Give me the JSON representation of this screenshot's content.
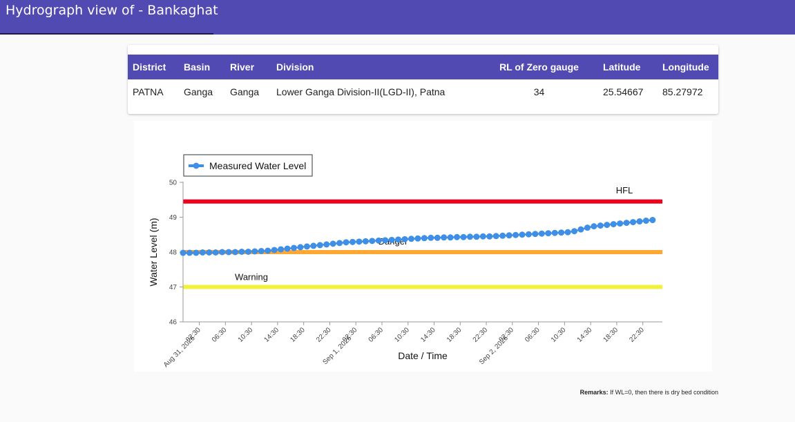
{
  "header": {
    "title": "Hydrograph view of - Bankaghat"
  },
  "station_table": {
    "headers": {
      "district": "District",
      "basin": "Basin",
      "river": "River",
      "division": "Division",
      "rl_zero": "RL of Zero gauge",
      "latitude": "Latitude",
      "longitude": "Longitude"
    },
    "row": {
      "district": "PATNA",
      "basin": "Ganga",
      "river": "Ganga",
      "division": "Lower Ganga Division-II(LGD-II), Patna",
      "rl_zero": "34",
      "latitude": "25.54667",
      "longitude": "85.27972"
    }
  },
  "colors": {
    "accent": "#524ab3",
    "series": "#3f8fe6",
    "hfl": "#f0001c",
    "danger": "#ffa733",
    "warning": "#f2f23c"
  },
  "chart_data": {
    "type": "line",
    "xlabel": "Date / Time",
    "ylabel": "Water Level (m)",
    "ylim": [
      46,
      50
    ],
    "yticks": [
      46,
      47,
      48,
      49,
      50
    ],
    "xlim": [
      "2026-08-31 00:00",
      "2026-09-03 01:30"
    ],
    "x_ticks": [
      {
        "t": "2026-08-31 02:30",
        "label": "02:30"
      },
      {
        "t": "2026-08-31 06:30",
        "label": "06:30"
      },
      {
        "t": "2026-08-31 10:30",
        "label": "10:30"
      },
      {
        "t": "2026-08-31 14:30",
        "label": "14:30"
      },
      {
        "t": "2026-08-31 18:30",
        "label": "18:30"
      },
      {
        "t": "2026-08-31 22:30",
        "label": "22:30"
      },
      {
        "t": "2026-09-01 02:30",
        "label": "02:30"
      },
      {
        "t": "2026-09-01 06:30",
        "label": "06:30"
      },
      {
        "t": "2026-09-01 10:30",
        "label": "10:30"
      },
      {
        "t": "2026-09-01 14:30",
        "label": "14:30"
      },
      {
        "t": "2026-09-01 18:30",
        "label": "18:30"
      },
      {
        "t": "2026-09-01 22:30",
        "label": "22:30"
      },
      {
        "t": "2026-09-02 02:30",
        "label": "02:30"
      },
      {
        "t": "2026-09-02 06:30",
        "label": "06:30"
      },
      {
        "t": "2026-09-02 10:30",
        "label": "10:30"
      },
      {
        "t": "2026-09-02 14:30",
        "label": "14:30"
      },
      {
        "t": "2026-09-02 18:30",
        "label": "18:30"
      },
      {
        "t": "2026-09-02 22:30",
        "label": "22:30"
      }
    ],
    "date_labels": [
      {
        "t": "2026-08-31 02:30",
        "label": "Aug 31, 2026"
      },
      {
        "t": "2026-09-01 02:30",
        "label": "Sep 1, 2026"
      },
      {
        "t": "2026-09-02 02:30",
        "label": "Sep 2, 2026"
      }
    ],
    "legend": {
      "label": "Measured Water Level",
      "placement": "top-left"
    },
    "thresholds": [
      {
        "name": "HFL",
        "value": 49.45
      },
      {
        "name": "Danger",
        "value": 48.0
      },
      {
        "name": "Warning",
        "value": 47.0
      }
    ],
    "series": [
      {
        "name": "Measured Water Level",
        "x": [
          "2026-08-31 00:00",
          "2026-08-31 01:00",
          "2026-08-31 02:00",
          "2026-08-31 03:00",
          "2026-08-31 04:00",
          "2026-08-31 05:00",
          "2026-08-31 06:00",
          "2026-08-31 07:00",
          "2026-08-31 08:00",
          "2026-08-31 09:00",
          "2026-08-31 10:00",
          "2026-08-31 11:00",
          "2026-08-31 12:00",
          "2026-08-31 13:00",
          "2026-08-31 14:00",
          "2026-08-31 15:00",
          "2026-08-31 16:00",
          "2026-08-31 17:00",
          "2026-08-31 18:00",
          "2026-08-31 19:00",
          "2026-08-31 20:00",
          "2026-08-31 21:00",
          "2026-08-31 22:00",
          "2026-08-31 23:00",
          "2026-09-01 00:00",
          "2026-09-01 01:00",
          "2026-09-01 02:00",
          "2026-09-01 03:00",
          "2026-09-01 04:00",
          "2026-09-01 05:00",
          "2026-09-01 06:00",
          "2026-09-01 07:00",
          "2026-09-01 08:00",
          "2026-09-01 09:00",
          "2026-09-01 10:00",
          "2026-09-01 11:00",
          "2026-09-01 12:00",
          "2026-09-01 13:00",
          "2026-09-01 14:00",
          "2026-09-01 15:00",
          "2026-09-01 16:00",
          "2026-09-01 17:00",
          "2026-09-01 18:00",
          "2026-09-01 19:00",
          "2026-09-01 20:00",
          "2026-09-01 21:00",
          "2026-09-01 22:00",
          "2026-09-01 23:00",
          "2026-09-02 00:00",
          "2026-09-02 01:00",
          "2026-09-02 02:00",
          "2026-09-02 03:00",
          "2026-09-02 04:00",
          "2026-09-02 05:00",
          "2026-09-02 06:00",
          "2026-09-02 07:00",
          "2026-09-02 08:00",
          "2026-09-02 09:00",
          "2026-09-02 10:00",
          "2026-09-02 11:00",
          "2026-09-02 12:00",
          "2026-09-02 13:00",
          "2026-09-02 14:00",
          "2026-09-02 15:00",
          "2026-09-02 16:00",
          "2026-09-02 17:00",
          "2026-09-02 18:00",
          "2026-09-02 19:00",
          "2026-09-02 20:00",
          "2026-09-02 21:00",
          "2026-09-02 22:00",
          "2026-09-02 23:00",
          "2026-09-03 00:00"
        ],
        "values": [
          47.98,
          47.98,
          47.98,
          47.99,
          47.99,
          47.99,
          48.0,
          48.0,
          48.0,
          48.01,
          48.01,
          48.02,
          48.03,
          48.04,
          48.06,
          48.08,
          48.1,
          48.12,
          48.14,
          48.16,
          48.18,
          48.2,
          48.22,
          48.24,
          48.26,
          48.28,
          48.29,
          48.3,
          48.31,
          48.32,
          48.33,
          48.34,
          48.35,
          48.36,
          48.37,
          48.38,
          48.39,
          48.4,
          48.41,
          48.41,
          48.42,
          48.42,
          48.43,
          48.43,
          48.44,
          48.44,
          48.45,
          48.45,
          48.46,
          48.47,
          48.48,
          48.49,
          48.5,
          48.51,
          48.52,
          48.53,
          48.54,
          48.55,
          48.56,
          48.57,
          48.6,
          48.65,
          48.7,
          48.74,
          48.76,
          48.78,
          48.8,
          48.82,
          48.84,
          48.86,
          48.88,
          48.9,
          48.92
        ]
      }
    ]
  },
  "remarks": {
    "label": "Remarks:",
    "text": "If WL=0, then there is dry bed condition"
  }
}
